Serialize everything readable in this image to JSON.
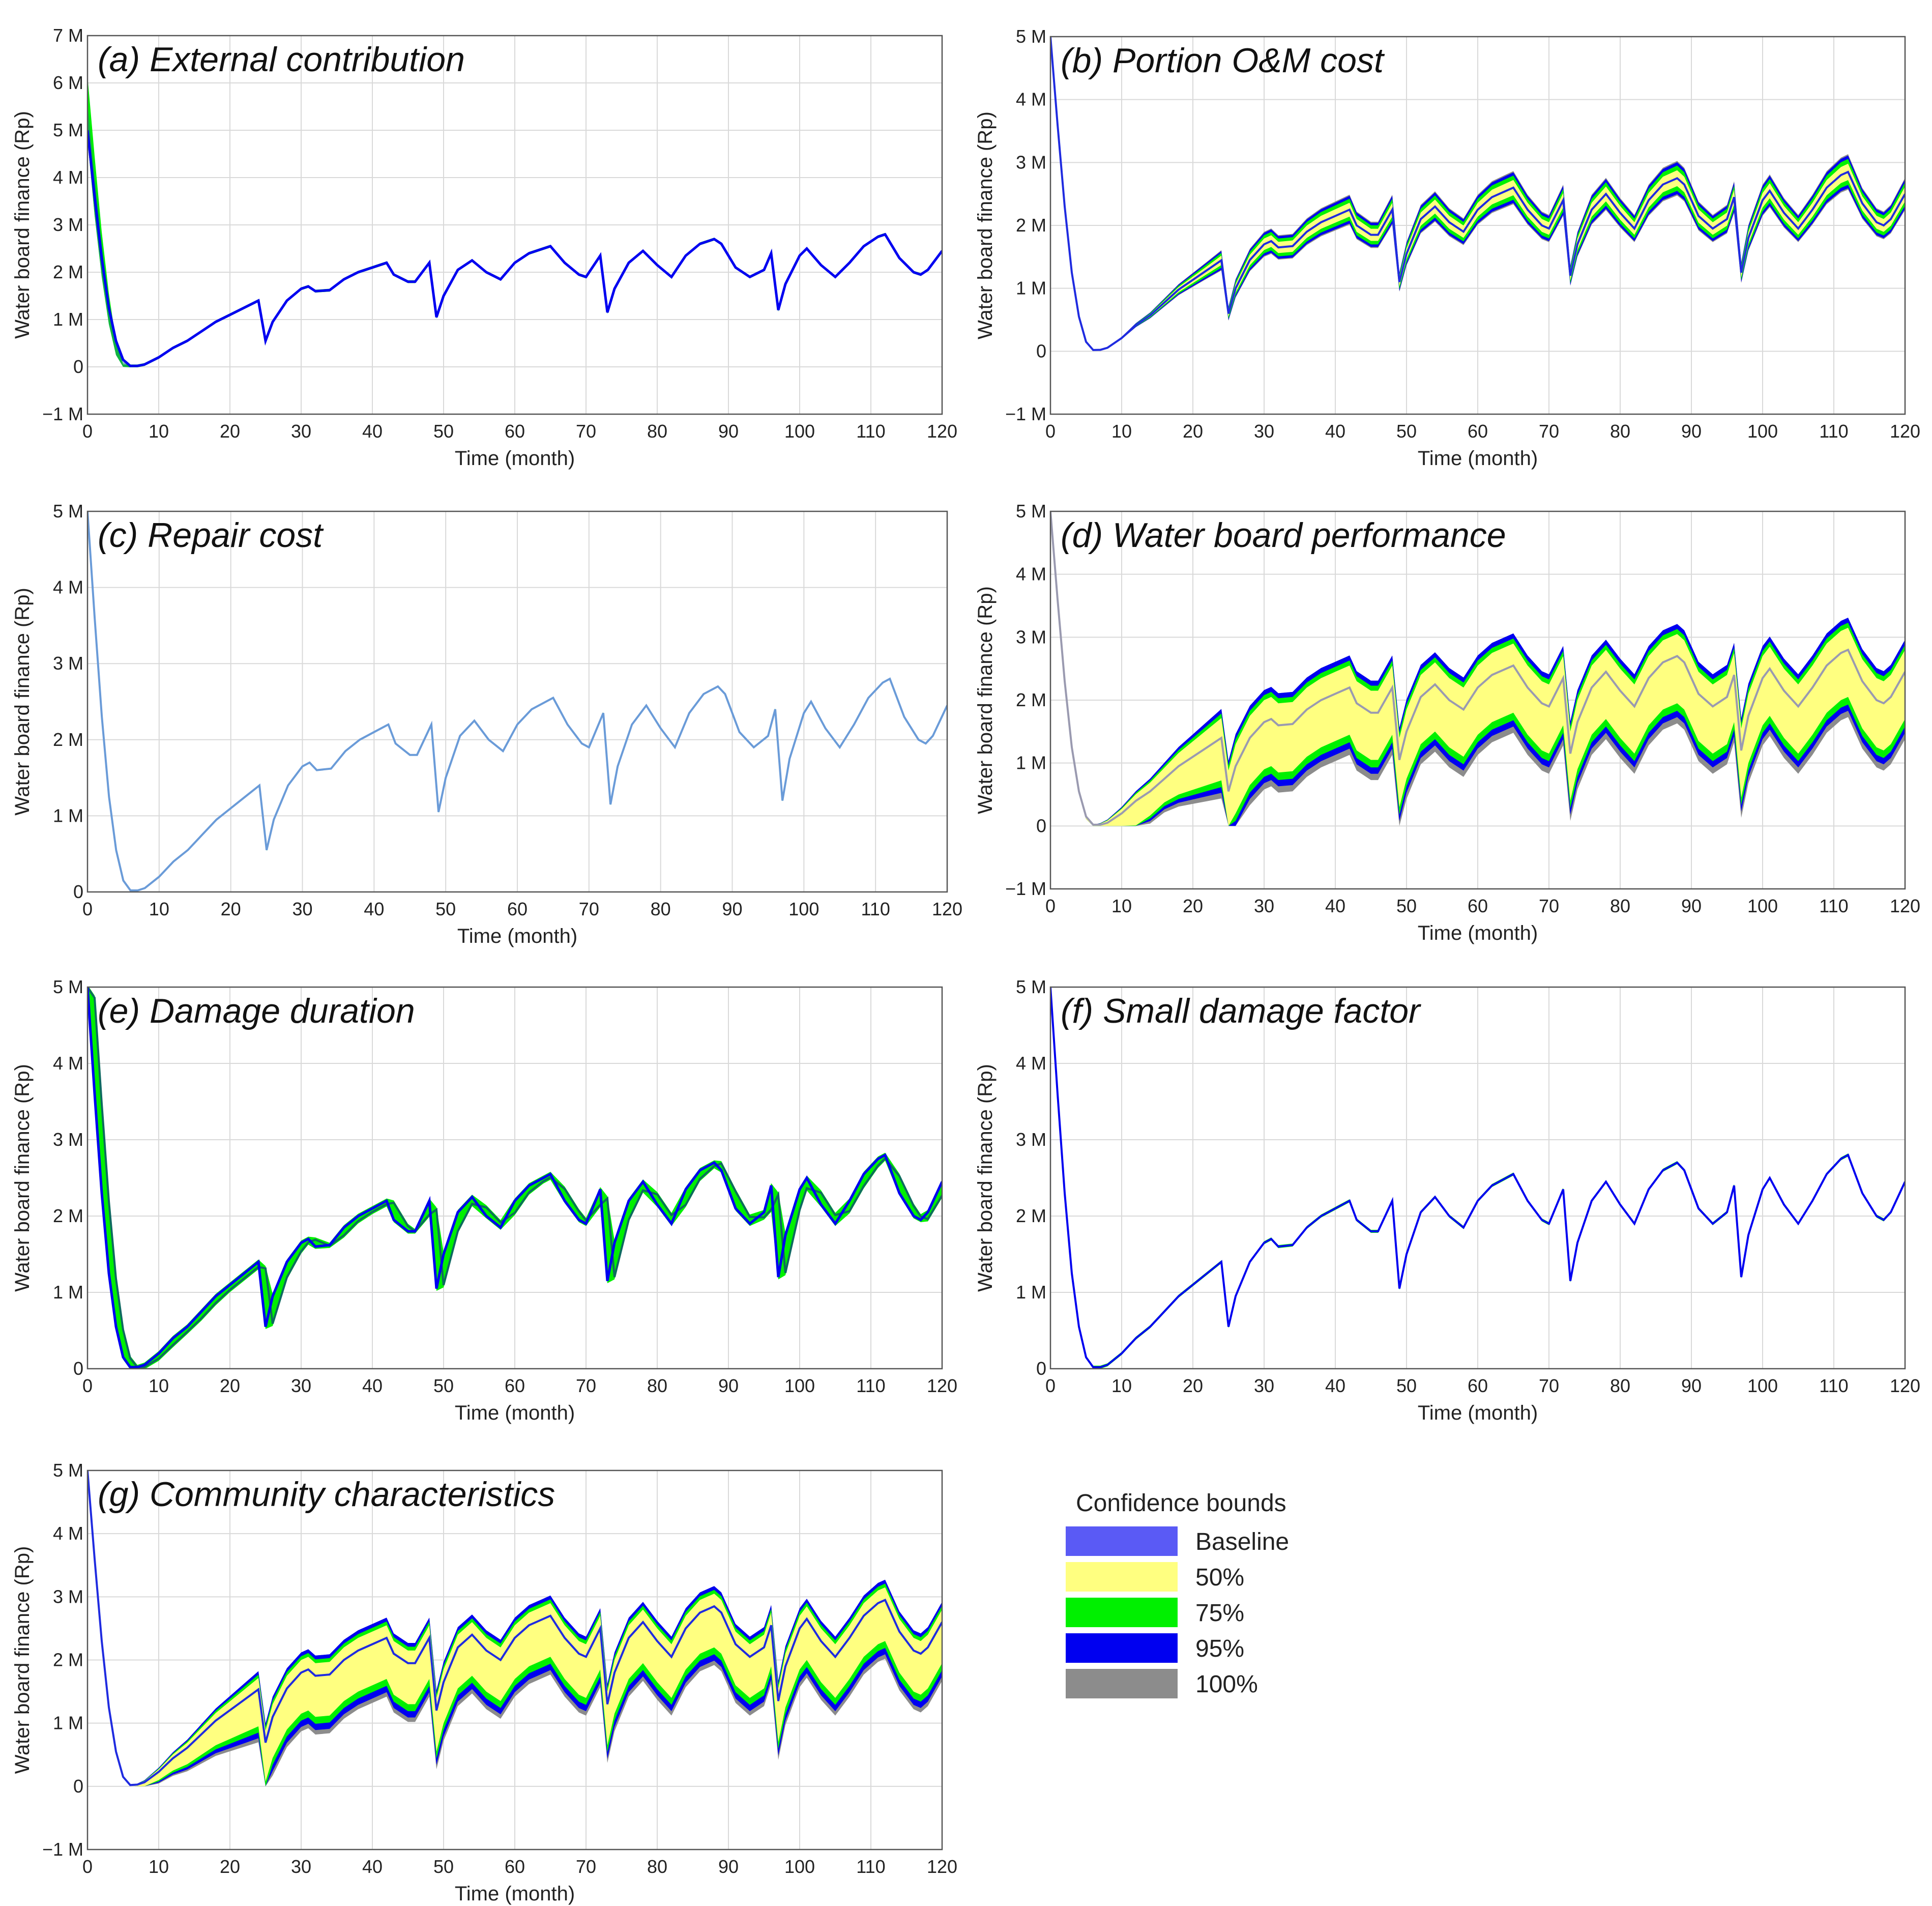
{
  "colors": {
    "baseline": "#5A5AF5",
    "band50": "#FFFF80",
    "band75": "#00F000",
    "band95": "#0000F0",
    "band100": "#8C8C8C",
    "mean_line": "#1F2BE0",
    "grid": "#D9D9D9"
  },
  "legend": {
    "title": "Confidence bounds",
    "items": [
      {
        "key": "baseline",
        "label": "Baseline"
      },
      {
        "key": "band50",
        "label": "50%"
      },
      {
        "key": "band75",
        "label": "75%"
      },
      {
        "key": "band95",
        "label": "95%"
      },
      {
        "key": "band100",
        "label": "100%"
      }
    ]
  },
  "chart_data": [
    {
      "id": "a",
      "type": "area",
      "title": "(a) External contribution",
      "xlabel": "Time (month)",
      "ylabel": "Water board finance (Rp)",
      "xlim": [
        0,
        120
      ],
      "ylim": [
        -1,
        7
      ],
      "xticks": [
        "0",
        "10",
        "20",
        "30",
        "40",
        "50",
        "60",
        "70",
        "80",
        "90",
        "100",
        "110",
        "120"
      ],
      "yticks": [
        "−1 M",
        "0",
        "1 M",
        "2 M",
        "3 M",
        "4 M",
        "5 M",
        "6 M",
        "7 M"
      ],
      "grid": true,
      "baseline": [
        [
          0,
          5
        ],
        [
          1,
          3.6
        ],
        [
          2,
          2.3
        ],
        [
          3,
          1.25
        ],
        [
          4,
          0.55
        ],
        [
          5,
          0.15
        ],
        [
          6,
          0.02
        ],
        [
          7,
          0.02
        ],
        [
          8,
          0.05
        ],
        [
          10,
          0.2
        ],
        [
          12,
          0.4
        ],
        [
          14,
          0.55
        ],
        [
          16,
          0.75
        ],
        [
          18,
          0.95
        ],
        [
          20,
          1.1
        ],
        [
          22,
          1.25
        ],
        [
          24,
          1.4
        ],
        [
          25,
          0.55
        ],
        [
          26,
          0.95
        ],
        [
          28,
          1.4
        ],
        [
          30,
          1.65
        ],
        [
          31,
          1.7
        ],
        [
          32,
          1.6
        ],
        [
          34,
          1.62
        ],
        [
          36,
          1.85
        ],
        [
          38,
          2
        ],
        [
          40,
          2.1
        ],
        [
          42,
          2.2
        ],
        [
          43,
          1.95
        ],
        [
          45,
          1.8
        ],
        [
          46,
          1.8
        ],
        [
          48,
          2.2
        ],
        [
          49,
          1.05
        ],
        [
          50,
          1.5
        ],
        [
          52,
          2.05
        ],
        [
          54,
          2.25
        ],
        [
          56,
          2
        ],
        [
          58,
          1.85
        ],
        [
          60,
          2.2
        ],
        [
          62,
          2.4
        ],
        [
          64,
          2.5
        ],
        [
          65,
          2.55
        ],
        [
          67,
          2.2
        ],
        [
          69,
          1.95
        ],
        [
          70,
          1.9
        ],
        [
          72,
          2.35
        ],
        [
          73,
          1.15
        ],
        [
          74,
          1.65
        ],
        [
          76,
          2.2
        ],
        [
          78,
          2.45
        ],
        [
          80,
          2.15
        ],
        [
          82,
          1.9
        ],
        [
          84,
          2.35
        ],
        [
          86,
          2.6
        ],
        [
          88,
          2.7
        ],
        [
          89,
          2.6
        ],
        [
          91,
          2.1
        ],
        [
          93,
          1.9
        ],
        [
          95,
          2.05
        ],
        [
          96,
          2.4
        ],
        [
          97,
          1.2
        ],
        [
          98,
          1.75
        ],
        [
          100,
          2.35
        ],
        [
          101,
          2.5
        ],
        [
          103,
          2.15
        ],
        [
          105,
          1.9
        ],
        [
          107,
          2.2
        ],
        [
          109,
          2.55
        ],
        [
          111,
          2.75
        ],
        [
          112,
          2.8
        ],
        [
          114,
          2.3
        ],
        [
          116,
          2
        ],
        [
          117,
          1.95
        ],
        [
          118,
          2.05
        ],
        [
          120,
          2.45
        ]
      ],
      "bands": [
        {
          "key": "band75",
          "lower_offset": 0.03,
          "upper_offset": 0.03,
          "early": [
            [
              0,
              6.1
            ],
            [
              1,
              4.4
            ],
            [
              2,
              2.8
            ],
            [
              3,
              1.5
            ],
            [
              4,
              0.5
            ],
            [
              5,
              0.0
            ],
            [
              6,
              0.0
            ]
          ]
        },
        {
          "key": "band95",
          "lower_offset": 0.02,
          "upper_offset": 0.02,
          "early": [
            [
              0,
              4.8
            ],
            [
              1,
              3.2
            ],
            [
              2,
              1.9
            ],
            [
              3,
              0.9
            ],
            [
              4,
              0.25
            ],
            [
              5,
              0.0
            ]
          ]
        }
      ],
      "mean": "baseline"
    },
    {
      "id": "b",
      "type": "area",
      "title": "(b) Portion O&M cost",
      "xlabel": "Time (month)",
      "ylabel": "Water board finance (Rp)",
      "xlim": [
        0,
        120
      ],
      "ylim": [
        -1,
        5
      ],
      "xticks": [
        "0",
        "10",
        "20",
        "30",
        "40",
        "50",
        "60",
        "70",
        "80",
        "90",
        "100",
        "110",
        "120"
      ],
      "yticks": [
        "−1 M",
        "0",
        "1 M",
        "2 M",
        "3 M",
        "4 M",
        "5 M"
      ],
      "grid": true,
      "spread": {
        "b50": 0.12,
        "b75": 0.19,
        "b95": 0.24,
        "b100": 0.26,
        "scale_with_value": true
      }
    },
    {
      "id": "c",
      "type": "area",
      "title": "(c) Repair cost",
      "xlabel": "Time (month)",
      "ylabel": "Water board finance (Rp)",
      "xlim": [
        0,
        120
      ],
      "ylim": [
        0,
        5
      ],
      "xticks": [
        "0",
        "10",
        "20",
        "30",
        "40",
        "50",
        "60",
        "70",
        "80",
        "90",
        "100",
        "110",
        "120"
      ],
      "yticks": [
        "0",
        "1 M",
        "2 M",
        "3 M",
        "4 M",
        "5 M"
      ],
      "grid": true,
      "spread": {
        "b50": 0.0,
        "b75": 0.01,
        "b95": 0.015,
        "b100": 0.02,
        "scale_with_value": false
      },
      "line_color": "#6A9BD8"
    },
    {
      "id": "d",
      "type": "area",
      "title": "(d) Water board performance",
      "xlabel": "Time (month)",
      "ylabel": "Water board finance (Rp)",
      "xlim": [
        0,
        120
      ],
      "ylim": [
        -1,
        5
      ],
      "xticks": [
        "0",
        "10",
        "20",
        "30",
        "40",
        "50",
        "60",
        "70",
        "80",
        "90",
        "100",
        "110",
        "120"
      ],
      "yticks": [
        "−1 M",
        "0",
        "1 M",
        "2 M",
        "3 M",
        "4 M",
        "5 M"
      ],
      "grid": true,
      "spread": {
        "upper50": 0.1,
        "upper75": 0.18,
        "upper95": 0.26,
        "lower50": 1.0,
        "lower75": 1.12,
        "lower95": 1.22,
        "lower100": 1.32,
        "scale_with_value": false
      },
      "mean_color": "#9A9AB0"
    },
    {
      "id": "e",
      "type": "area",
      "title": "(e) Damage duration",
      "xlabel": "Time (month)",
      "ylabel": "Water board finance (Rp)",
      "xlim": [
        0,
        120
      ],
      "ylim": [
        0,
        5
      ],
      "xticks": [
        "0",
        "10",
        "20",
        "30",
        "40",
        "50",
        "60",
        "70",
        "80",
        "90",
        "100",
        "110",
        "120"
      ],
      "yticks": [
        "0",
        "1 M",
        "2 M",
        "3 M",
        "4 M",
        "5 M"
      ],
      "grid": true,
      "spread": {
        "shift": 0.9,
        "scale_with_value": false
      }
    },
    {
      "id": "f",
      "type": "area",
      "title": "(f) Small damage factor",
      "xlabel": "Time (month)",
      "ylabel": "Water board finance (Rp)",
      "xlim": [
        0,
        120
      ],
      "ylim": [
        0,
        5
      ],
      "xticks": [
        "0",
        "10",
        "20",
        "30",
        "40",
        "50",
        "60",
        "70",
        "80",
        "90",
        "100",
        "110",
        "120"
      ],
      "yticks": [
        "0",
        "1 M",
        "2 M",
        "3 M",
        "4 M",
        "5 M"
      ],
      "grid": true,
      "spread": {
        "b50": 0.0,
        "b75": 0.02,
        "b95": 0.02,
        "b100": 0.03,
        "scale_with_value": false
      }
    },
    {
      "id": "g",
      "type": "area",
      "title": "(g) Community characteristics",
      "xlabel": "Time (month)",
      "ylabel": "Water board finance (Rp)",
      "xlim": [
        0,
        120
      ],
      "ylim": [
        -1,
        5
      ],
      "xticks": [
        "0",
        "10",
        "20",
        "30",
        "40",
        "50",
        "60",
        "70",
        "80",
        "90",
        "100",
        "110",
        "120"
      ],
      "yticks": [
        "−1 M",
        "0",
        "1 M",
        "2 M",
        "3 M",
        "4 M",
        "5 M"
      ],
      "grid": true,
      "spread": {
        "upper50": 0.1,
        "upper75": 0.16,
        "upper95": 0.22,
        "lower50": 0.75,
        "lower75": 0.86,
        "lower95": 0.96,
        "lower100": 1.03,
        "scale_with_value": false
      },
      "mean_color": "#1F2BE0"
    }
  ]
}
